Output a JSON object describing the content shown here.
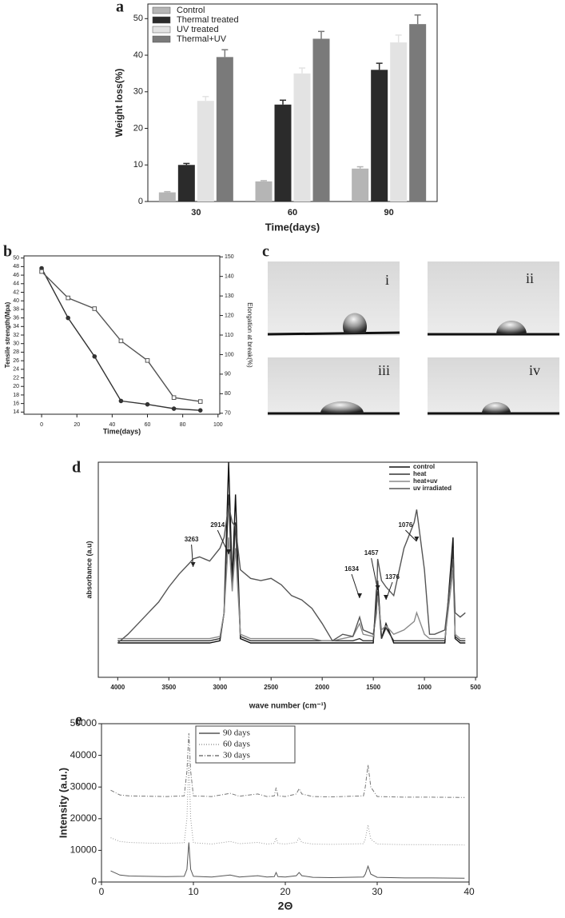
{
  "chart_data": [
    {
      "type": "bar",
      "panel": "a",
      "ylabel": "Weight loss(%)",
      "xlabel": "Time(days)",
      "categories": [
        "30",
        "60",
        "90"
      ],
      "series": [
        {
          "name": "Control",
          "color": "#b5b5b5",
          "values": [
            2.5,
            5.5,
            9
          ],
          "errors": [
            0.2,
            0.2,
            0.5
          ]
        },
        {
          "name": "Thermal treated",
          "color": "#2b2b2b",
          "values": [
            10,
            26.5,
            36
          ],
          "errors": [
            0.4,
            1.2,
            1.8
          ]
        },
        {
          "name": "UV treated",
          "color": "#e3e3e3",
          "values": [
            27.5,
            35,
            43.5
          ],
          "errors": [
            1.2,
            1.5,
            2
          ]
        },
        {
          "name": "Thermal+UV",
          "color": "#7a7a7a",
          "values": [
            39.5,
            44.5,
            48.5
          ],
          "errors": [
            2,
            2,
            2.5
          ]
        }
      ],
      "ylim": [
        0,
        54
      ],
      "yticks": [
        0,
        10,
        20,
        30,
        40,
        50
      ],
      "legend": "upper left"
    },
    {
      "type": "line",
      "panel": "b",
      "ylabel": "Tensile strength(Mpa)",
      "y2label": "Elongation at break(%)",
      "xlabel": "Time(days)",
      "x": [
        0,
        15,
        30,
        45,
        60,
        75,
        90
      ],
      "series": [
        {
          "color": "#333333",
          "marker": "circle",
          "values": [
            47.6,
            36,
            27,
            16.6,
            15.8,
            14.8,
            14.4
          ]
        },
        {
          "color": "#555555",
          "marker": "square",
          "axis": "y2",
          "values": [
            142.5,
            129,
            123.5,
            107,
            97,
            78,
            76
          ]
        }
      ],
      "xlim": [
        -10,
        101
      ],
      "xticks": [
        0,
        20,
        40,
        60,
        80,
        100
      ],
      "ylim": [
        13.5,
        50.5
      ],
      "yticks": [
        14,
        16,
        18,
        20,
        22,
        24,
        26,
        28,
        30,
        32,
        34,
        36,
        38,
        40,
        42,
        44,
        46,
        48,
        50
      ],
      "y2lim": [
        69.5,
        150.5
      ],
      "y2ticks": [
        70,
        80,
        90,
        100,
        110,
        120,
        130,
        140,
        150
      ]
    },
    {
      "type": "line",
      "panel": "d",
      "ylabel": "absorbance (a.u)",
      "xlabel": "wave number (cm⁻¹)",
      "x": [
        4000,
        3900,
        3800,
        3700,
        3600,
        3500,
        3400,
        3300,
        3263,
        3200,
        3100,
        3000,
        2960,
        2915,
        2880,
        2848,
        2800,
        2700,
        2600,
        2500,
        2400,
        2300,
        2200,
        2100,
        2000,
        1900,
        1800,
        1700,
        1634,
        1600,
        1500,
        1470,
        1457,
        1420,
        1376,
        1300,
        1200,
        1100,
        1076,
        1000,
        950,
        900,
        800,
        720,
        700,
        650,
        600
      ],
      "series": [
        {
          "name": "control",
          "color": "#111111",
          "values": [
            0.16,
            0.16,
            0.16,
            0.16,
            0.16,
            0.16,
            0.16,
            0.16,
            0.16,
            0.16,
            0.16,
            0.17,
            0.3,
            1.0,
            0.45,
            0.85,
            0.18,
            0.16,
            0.16,
            0.16,
            0.16,
            0.16,
            0.16,
            0.16,
            0.16,
            0.16,
            0.16,
            0.16,
            0.16,
            0.16,
            0.16,
            0.4,
            0.45,
            0.18,
            0.25,
            0.16,
            0.16,
            0.16,
            0.16,
            0.16,
            0.16,
            0.16,
            0.16,
            0.65,
            0.18,
            0.16,
            0.16
          ]
        },
        {
          "name": "heat",
          "color": "#333333",
          "values": [
            0.17,
            0.17,
            0.17,
            0.17,
            0.17,
            0.17,
            0.17,
            0.17,
            0.17,
            0.17,
            0.17,
            0.18,
            0.3,
            0.85,
            0.42,
            0.72,
            0.19,
            0.17,
            0.17,
            0.17,
            0.17,
            0.17,
            0.17,
            0.17,
            0.17,
            0.17,
            0.17,
            0.17,
            0.18,
            0.17,
            0.17,
            0.36,
            0.4,
            0.18,
            0.23,
            0.17,
            0.17,
            0.17,
            0.17,
            0.17,
            0.17,
            0.17,
            0.17,
            0.6,
            0.19,
            0.17,
            0.17
          ]
        },
        {
          "name": "heat+uv",
          "color": "#8a8a8a",
          "values": [
            0.18,
            0.18,
            0.18,
            0.18,
            0.18,
            0.18,
            0.18,
            0.18,
            0.18,
            0.18,
            0.18,
            0.19,
            0.3,
            0.65,
            0.4,
            0.6,
            0.2,
            0.18,
            0.18,
            0.18,
            0.18,
            0.18,
            0.18,
            0.18,
            0.17,
            0.17,
            0.18,
            0.19,
            0.25,
            0.2,
            0.19,
            0.32,
            0.38,
            0.22,
            0.24,
            0.2,
            0.22,
            0.26,
            0.3,
            0.2,
            0.18,
            0.18,
            0.18,
            0.5,
            0.2,
            0.18,
            0.18
          ]
        },
        {
          "name": "uv irradiated",
          "color": "#555555",
          "values": [
            0.16,
            0.2,
            0.25,
            0.3,
            0.35,
            0.42,
            0.48,
            0.53,
            0.55,
            0.56,
            0.54,
            0.6,
            0.65,
            0.8,
            0.72,
            0.7,
            0.5,
            0.46,
            0.45,
            0.46,
            0.43,
            0.38,
            0.36,
            0.32,
            0.25,
            0.17,
            0.2,
            0.19,
            0.28,
            0.22,
            0.2,
            0.3,
            0.55,
            0.45,
            0.42,
            0.38,
            0.6,
            0.72,
            0.78,
            0.5,
            0.2,
            0.2,
            0.22,
            0.55,
            0.3,
            0.28,
            0.3
          ]
        }
      ],
      "xlim": [
        4190,
        485
      ],
      "xticks": [
        4000,
        3500,
        3000,
        2500,
        2000,
        1500,
        1000,
        500
      ],
      "ylim": [
        0,
        1
      ],
      "legend": "upper right",
      "annotations": [
        3263,
        2914,
        1634,
        1457,
        1376,
        1076
      ]
    },
    {
      "type": "line",
      "panel": "e",
      "ylabel": "Intensity (a.u.)",
      "xlabel": "2Θ",
      "x": [
        1,
        2,
        3,
        5,
        7,
        9,
        9.3,
        9.5,
        9.7,
        10,
        12,
        14,
        15,
        17,
        18,
        18.8,
        19,
        19.2,
        20,
        21.2,
        21.5,
        21.8,
        23,
        25,
        28.5,
        28.7,
        29,
        29.3,
        30,
        33,
        36,
        39.5
      ],
      "series": [
        {
          "name": "90 days",
          "color": "#555555",
          "dash": "solid",
          "values": [
            3500,
            2200,
            1900,
            1800,
            1700,
            1800,
            4000,
            12500,
            4000,
            1800,
            1600,
            2200,
            1600,
            2000,
            1600,
            1700,
            3000,
            1700,
            1600,
            2000,
            3000,
            2000,
            1500,
            1400,
            1600,
            2500,
            5000,
            2500,
            1500,
            1300,
            1300,
            1200
          ]
        },
        {
          "name": "60 days",
          "color": "#9a9a9a",
          "dash": "dotted",
          "values": [
            14000,
            12800,
            12500,
            12300,
            12200,
            12400,
            20000,
            39000,
            20000,
            12400,
            12000,
            12800,
            12100,
            12500,
            12000,
            12200,
            14000,
            12200,
            12000,
            12500,
            14000,
            12500,
            12000,
            11900,
            12100,
            13500,
            18000,
            13500,
            12000,
            11800,
            11800,
            11700
          ]
        },
        {
          "name": "30 days",
          "color": "#777777",
          "dash": "dashdot",
          "values": [
            29000,
            27500,
            27200,
            27100,
            27000,
            27200,
            35000,
            47000,
            35000,
            27200,
            27000,
            28000,
            27100,
            27800,
            27000,
            27200,
            29800,
            27200,
            27000,
            27800,
            29500,
            27800,
            27000,
            26900,
            27200,
            30000,
            37000,
            30000,
            27000,
            26800,
            26800,
            26700
          ]
        }
      ],
      "xlim": [
        0,
        40
      ],
      "xticks": [
        0,
        10,
        20,
        30,
        40
      ],
      "ylim": [
        0,
        50000
      ],
      "yticks": [
        0,
        10000,
        20000,
        30000,
        40000,
        50000
      ],
      "legend": "upper center"
    }
  ],
  "figure_c": {
    "label": "c",
    "images": [
      "i",
      "ii",
      "iii",
      "iv"
    ]
  }
}
